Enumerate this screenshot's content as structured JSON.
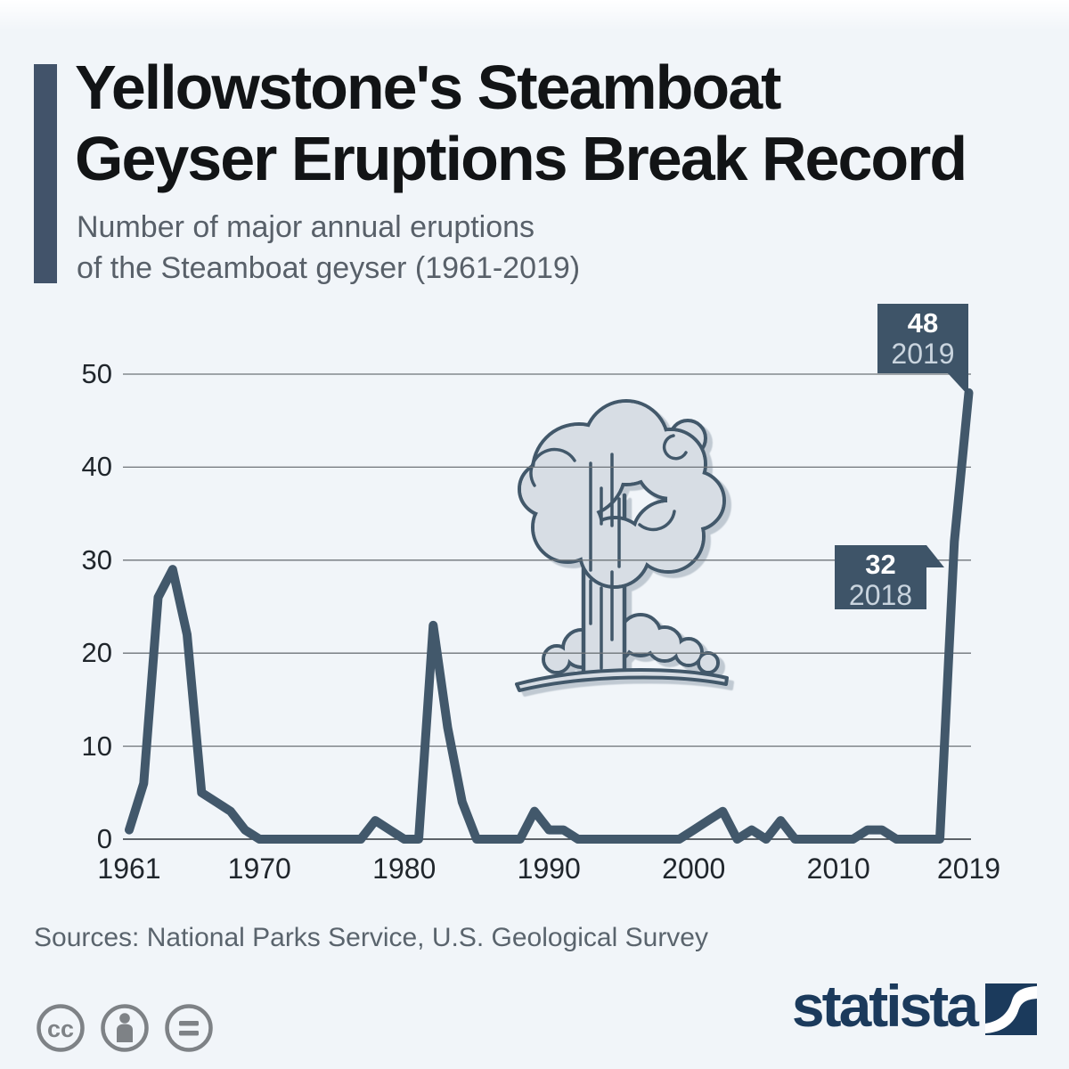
{
  "header": {
    "title_lines": [
      "Yellowstone's Steamboat",
      "Geyser Eruptions Break Record"
    ],
    "subtitle_lines": [
      "Number of major annual eruptions",
      "of the Steamboat geyser (1961-2019)"
    ]
  },
  "chart_data": {
    "type": "line",
    "title": "Number of major annual eruptions of the Steamboat geyser (1961-2019)",
    "series_name": "Major annual eruptions",
    "xlabel": "",
    "ylabel": "",
    "ylim": [
      0,
      50
    ],
    "grid": true,
    "legend": false,
    "line_color": "#42586b",
    "x": [
      1961,
      1962,
      1963,
      1964,
      1965,
      1966,
      1967,
      1968,
      1969,
      1970,
      1971,
      1972,
      1973,
      1974,
      1975,
      1976,
      1977,
      1978,
      1979,
      1980,
      1981,
      1982,
      1983,
      1984,
      1985,
      1986,
      1987,
      1988,
      1989,
      1990,
      1991,
      1992,
      1993,
      1994,
      1995,
      1996,
      1997,
      1998,
      1999,
      2000,
      2001,
      2002,
      2003,
      2004,
      2005,
      2006,
      2007,
      2008,
      2009,
      2010,
      2011,
      2012,
      2013,
      2014,
      2015,
      2016,
      2017,
      2018,
      2019
    ],
    "values": [
      1,
      6,
      26,
      29,
      22,
      5,
      4,
      3,
      1,
      0,
      0,
      0,
      0,
      0,
      0,
      0,
      0,
      2,
      1,
      0,
      0,
      23,
      12,
      4,
      0,
      0,
      0,
      0,
      3,
      1,
      1,
      0,
      0,
      0,
      0,
      0,
      0,
      0,
      0,
      1,
      2,
      3,
      0,
      1,
      0,
      2,
      0,
      0,
      0,
      0,
      0,
      1,
      1,
      0,
      0,
      0,
      0,
      32,
      48
    ],
    "y_ticks": [
      0,
      10,
      20,
      30,
      40,
      50
    ],
    "x_ticks": [
      1961,
      1970,
      1980,
      1990,
      2000,
      2010,
      2019
    ],
    "annotations": [
      {
        "label": "48",
        "year": "2019",
        "value": 48
      },
      {
        "label": "32",
        "year": "2018",
        "value": 32
      }
    ]
  },
  "footer": {
    "sources": "Sources: National Parks Service, U.S. Geological Survey",
    "license_label": "cc",
    "brand": "statista"
  },
  "colors": {
    "background": "#f1f5f9",
    "accent": "#42536a",
    "line": "#42586b",
    "callout_bg": "#3e5468",
    "callout_year_text": "#c9d4de",
    "gridline": "#6e7479",
    "axis_text": "#20262c",
    "title_text": "#121416",
    "subtitle_text": "#586069",
    "sources_text": "#5a646d",
    "license_gray": "#7e8286",
    "brand_navy": "#1b3a5c",
    "illustration_fill": "#d7dde4"
  }
}
